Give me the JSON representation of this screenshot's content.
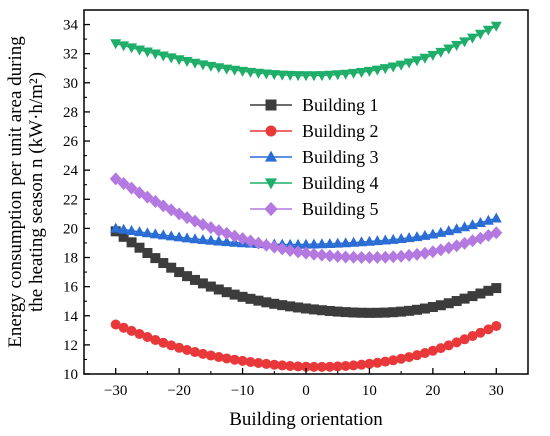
{
  "chart_data": {
    "type": "line",
    "title": "",
    "xlabel": "Building orientation",
    "ylabel_line1": "Energy consumption per unit area during",
    "ylabel_line2": "the heating season n (kW·h/m²)",
    "xlim": [
      -35,
      35
    ],
    "ylim": [
      10,
      35
    ],
    "xticks": [
      -30,
      -20,
      -10,
      0,
      10,
      20,
      30
    ],
    "xtick_labels": [
      "−30",
      "−20",
      "−10",
      "0",
      "10",
      "20",
      "30"
    ],
    "yticks": [
      10,
      12,
      14,
      16,
      18,
      20,
      22,
      24,
      26,
      28,
      30,
      32,
      34
    ],
    "ytick_labels": [
      "10",
      "12",
      "14",
      "16",
      "18",
      "20",
      "22",
      "24",
      "26",
      "28",
      "30",
      "32",
      "34"
    ],
    "legend_position": "center",
    "grid": false,
    "x": [
      -30,
      -20,
      -10,
      0,
      10,
      20,
      30
    ],
    "series": [
      {
        "name": "Building 1",
        "color": "#3c3c3c",
        "marker": "square",
        "values": [
          19.8,
          17.0,
          15.3,
          14.5,
          14.2,
          14.6,
          15.9
        ]
      },
      {
        "name": "Building 2",
        "color": "#e8383a",
        "marker": "circle",
        "values": [
          13.4,
          11.8,
          10.9,
          10.5,
          10.7,
          11.6,
          13.3
        ]
      },
      {
        "name": "Building 3",
        "color": "#2a6dd4",
        "marker": "triangle-up",
        "values": [
          20.0,
          19.4,
          19.0,
          18.9,
          19.1,
          19.6,
          20.7
        ]
      },
      {
        "name": "Building 4",
        "color": "#1fae6a",
        "marker": "triangle-down",
        "values": [
          32.7,
          31.6,
          30.8,
          30.5,
          30.8,
          31.9,
          33.9
        ]
      },
      {
        "name": "Building 5",
        "color": "#b479e0",
        "marker": "diamond",
        "values": [
          23.4,
          21.0,
          19.3,
          18.3,
          18.0,
          18.4,
          19.7
        ]
      }
    ]
  }
}
